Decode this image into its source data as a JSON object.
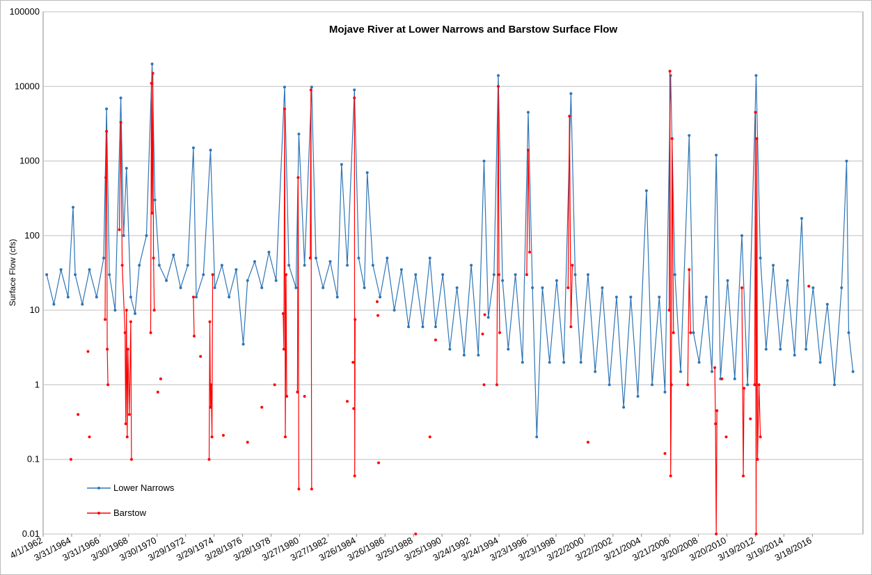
{
  "chart_data": {
    "type": "line",
    "title": "Mojave River at Lower Narrows and Barstow Surface Flow",
    "y_label": "Surface Flow (cfs)",
    "log_y": true,
    "grid": true,
    "legend": "lower-left",
    "xlim": [
      1962.25,
      2019.8
    ],
    "xticks": [
      {
        "value": 1962.25,
        "label": "4/1/1962"
      },
      {
        "value": 1964.25,
        "label": "3/31/1964"
      },
      {
        "value": 1966.25,
        "label": "3/31/1966"
      },
      {
        "value": 1968.25,
        "label": "3/30/1968"
      },
      {
        "value": 1970.25,
        "label": "3/30/1970"
      },
      {
        "value": 1972.25,
        "label": "3/29/1972"
      },
      {
        "value": 1974.25,
        "label": "3/29/1974"
      },
      {
        "value": 1976.25,
        "label": "3/28/1976"
      },
      {
        "value": 1978.25,
        "label": "3/28/1978"
      },
      {
        "value": 1980.25,
        "label": "3/27/1980"
      },
      {
        "value": 1982.25,
        "label": "3/27/1982"
      },
      {
        "value": 1984.25,
        "label": "3/26/1984"
      },
      {
        "value": 1986.25,
        "label": "3/26/1986"
      },
      {
        "value": 1988.25,
        "label": "3/25/1988"
      },
      {
        "value": 1990.25,
        "label": "3/25/1990"
      },
      {
        "value": 1992.25,
        "label": "3/24/1992"
      },
      {
        "value": 1994.25,
        "label": "3/24/1994"
      },
      {
        "value": 1996.25,
        "label": "3/23/1996"
      },
      {
        "value": 1998.25,
        "label": "3/23/1998"
      },
      {
        "value": 2000.25,
        "label": "3/22/2000"
      },
      {
        "value": 2002.25,
        "label": "3/22/2002"
      },
      {
        "value": 2004.25,
        "label": "3/21/2004"
      },
      {
        "value": 2006.25,
        "label": "3/21/2006"
      },
      {
        "value": 2008.25,
        "label": "3/20/2008"
      },
      {
        "value": 2010.25,
        "label": "3/20/2010"
      },
      {
        "value": 2012.25,
        "label": "3/19/2012"
      },
      {
        "value": 2014.25,
        "label": "3/19/2014"
      },
      {
        "value": 2016.25,
        "label": "3/18/2016"
      }
    ],
    "ylim": [
      0.01,
      100000
    ],
    "yticks": [
      0.01,
      0.1,
      1,
      10,
      100,
      1000,
      10000,
      100000
    ],
    "series": [
      {
        "name": "Lower Narrows",
        "color": "#2e75b6",
        "x": [
          1962.5,
          1963.0,
          1963.5,
          1964.0,
          1964.35,
          1964.5,
          1965.0,
          1965.5,
          1966.0,
          1966.5,
          1966.7,
          1966.9,
          1967.3,
          1967.7,
          1967.9,
          1968.1,
          1968.4,
          1968.7,
          1969.0,
          1969.5,
          1969.9,
          1970.1,
          1970.4,
          1970.9,
          1971.4,
          1971.9,
          1972.4,
          1972.8,
          1973.0,
          1973.5,
          1974.0,
          1974.3,
          1974.8,
          1975.3,
          1975.8,
          1976.3,
          1976.6,
          1977.1,
          1977.6,
          1978.1,
          1978.6,
          1979.2,
          1979.5,
          1980.0,
          1980.2,
          1980.6,
          1981.1,
          1981.4,
          1981.9,
          1982.4,
          1982.9,
          1983.2,
          1983.6,
          1984.1,
          1984.4,
          1984.8,
          1985.0,
          1985.4,
          1985.9,
          1986.4,
          1986.9,
          1987.4,
          1987.9,
          1988.4,
          1988.9,
          1989.4,
          1989.8,
          1990.3,
          1990.8,
          1991.3,
          1991.8,
          1992.3,
          1992.8,
          1993.2,
          1993.5,
          1993.9,
          1994.2,
          1994.5,
          1994.9,
          1995.4,
          1995.9,
          1996.3,
          1996.6,
          1996.9,
          1997.3,
          1997.8,
          1998.3,
          1998.8,
          1999.3,
          1999.6,
          2000.0,
          2000.5,
          2001.0,
          2001.5,
          2002.0,
          2002.5,
          2003.0,
          2003.5,
          2004.0,
          2004.6,
          2005.0,
          2005.5,
          2005.9,
          2006.3,
          2006.6,
          2007.0,
          2007.6,
          2007.9,
          2008.3,
          2008.8,
          2009.2,
          2009.5,
          2009.8,
          2010.3,
          2010.8,
          2011.3,
          2011.7,
          2012.3,
          2012.6,
          2013.0,
          2013.5,
          2014.0,
          2014.5,
          2015.0,
          2015.5,
          2015.8,
          2016.3,
          2016.8,
          2017.3,
          2017.8,
          2018.3,
          2018.65,
          2018.8,
          2019.1
        ],
        "values": [
          30,
          12,
          35,
          15,
          240,
          30,
          12,
          35,
          15,
          50,
          5000,
          30,
          10,
          7000,
          100,
          800,
          15,
          9,
          40,
          100,
          20000,
          300,
          40,
          25,
          55,
          20,
          40,
          1500,
          15,
          30,
          1400,
          20,
          40,
          15,
          35,
          3.5,
          25,
          45,
          20,
          60,
          25,
          9800,
          40,
          20,
          2300,
          40,
          9800,
          50,
          20,
          45,
          15,
          900,
          40,
          9000,
          50,
          20,
          700,
          40,
          15,
          50,
          10,
          35,
          6,
          30,
          6,
          50,
          6,
          30,
          3,
          20,
          2.5,
          40,
          2.5,
          1000,
          8,
          30,
          14000,
          25,
          3,
          30,
          2,
          4500,
          20,
          0.2,
          20,
          2,
          25,
          2,
          8000,
          30,
          2,
          30,
          1.5,
          20,
          1,
          15,
          0.5,
          15,
          0.7,
          400,
          1,
          15,
          0.8,
          14000,
          30,
          1.5,
          2200,
          5,
          2,
          15,
          1.5,
          1200,
          1.2,
          25,
          1.2,
          100,
          1,
          14000,
          50,
          3,
          40,
          3,
          25,
          2.5,
          170,
          3,
          20,
          2,
          12,
          1,
          20,
          1000,
          5,
          1.5
        ]
      },
      {
        "name": "Barstow",
        "color": "#ff0000",
        "x": [
          1964.2,
          null,
          1964.7,
          null,
          1965.4,
          null,
          1965.5,
          null,
          1966.6,
          1966.65,
          1966.7,
          1966.75,
          1966.8,
          null,
          1967.6,
          1967.7,
          1967.8,
          1968.0,
          1968.05,
          1968.1,
          1968.15,
          1968.2,
          1968.3,
          1968.4,
          1968.45,
          null,
          1969.8,
          1969.85,
          1969.9,
          1969.95,
          1970.0,
          1970.05,
          null,
          1970.3,
          null,
          1970.5,
          null,
          1972.8,
          1972.85,
          null,
          1973.3,
          null,
          1973.9,
          1973.95,
          1974.0,
          1974.05,
          1974.1,
          1974.15,
          null,
          1974.9,
          null,
          1976.6,
          null,
          1977.6,
          null,
          1978.5,
          null,
          1979.1,
          1979.15,
          1979.2,
          1979.25,
          1979.3,
          1979.35,
          null,
          1980.1,
          1980.15,
          1980.2,
          null,
          1980.6,
          null,
          1981.0,
          1981.05,
          1981.1,
          null,
          1983.6,
          null,
          1984.0,
          null,
          1984.05,
          null,
          1984.1,
          1984.12,
          1984.15,
          null,
          1985.7,
          null,
          1985.75,
          null,
          1985.8,
          null,
          1988.4,
          null,
          1989.4,
          null,
          1989.8,
          null,
          1993.1,
          null,
          1993.2,
          null,
          1993.25,
          null,
          1994.1,
          1994.2,
          1994.25,
          1994.3,
          null,
          1996.2,
          1996.3,
          1996.4,
          null,
          1999.1,
          1999.2,
          1999.3,
          1999.4,
          null,
          2000.5,
          null,
          2005.9,
          null,
          2006.2,
          2006.25,
          2006.3,
          2006.35,
          2006.4,
          2006.5,
          null,
          2007.5,
          2007.6,
          2007.7,
          null,
          2009.4,
          2009.45,
          2009.5,
          2009.55,
          null,
          2009.9,
          null,
          2010.2,
          null,
          2011.3,
          2011.4,
          2011.45,
          null,
          2011.9,
          null,
          2012.2,
          2012.25,
          2012.3,
          2012.35,
          2012.4,
          2012.5,
          2012.6,
          null,
          2016.0
        ],
        "values": [
          0.1,
          null,
          0.4,
          null,
          2.8,
          null,
          0.2,
          null,
          7.5,
          600,
          2500,
          3,
          1,
          null,
          120,
          3300,
          40,
          5,
          0.3,
          10,
          0.2,
          3,
          0.4,
          7,
          0.1,
          null,
          5,
          11000,
          200,
          15000,
          50,
          10,
          null,
          0.8,
          null,
          1.2,
          null,
          15,
          4.5,
          null,
          2.4,
          null,
          0.1,
          7,
          0.5,
          1,
          0.2,
          30,
          null,
          0.21,
          null,
          0.17,
          null,
          0.5,
          null,
          1,
          null,
          9,
          3,
          5000,
          0.2,
          30,
          0.7,
          null,
          0.8,
          600,
          0.04,
          null,
          0.7,
          null,
          50,
          9000,
          0.04,
          null,
          0.6,
          null,
          2,
          null,
          0.48,
          null,
          7000,
          0.06,
          7.5,
          null,
          13,
          null,
          8.5,
          null,
          0.09,
          null,
          0.01,
          null,
          0.2,
          null,
          4,
          null,
          4.8,
          null,
          1,
          null,
          8.7,
          null,
          1,
          10000,
          30,
          5,
          null,
          30,
          1400,
          60,
          null,
          20,
          4000,
          6,
          40,
          null,
          0.17,
          null,
          0.12,
          null,
          10,
          16000,
          0.06,
          1,
          2000,
          5,
          null,
          1,
          35,
          5,
          null,
          1.7,
          0.3,
          0.01,
          0.45,
          null,
          1.2,
          null,
          0.2,
          null,
          20,
          0.06,
          0.9,
          null,
          0.35,
          null,
          1,
          4500,
          0.01,
          2000,
          0.1,
          1,
          0.2,
          null,
          21
        ]
      }
    ]
  }
}
